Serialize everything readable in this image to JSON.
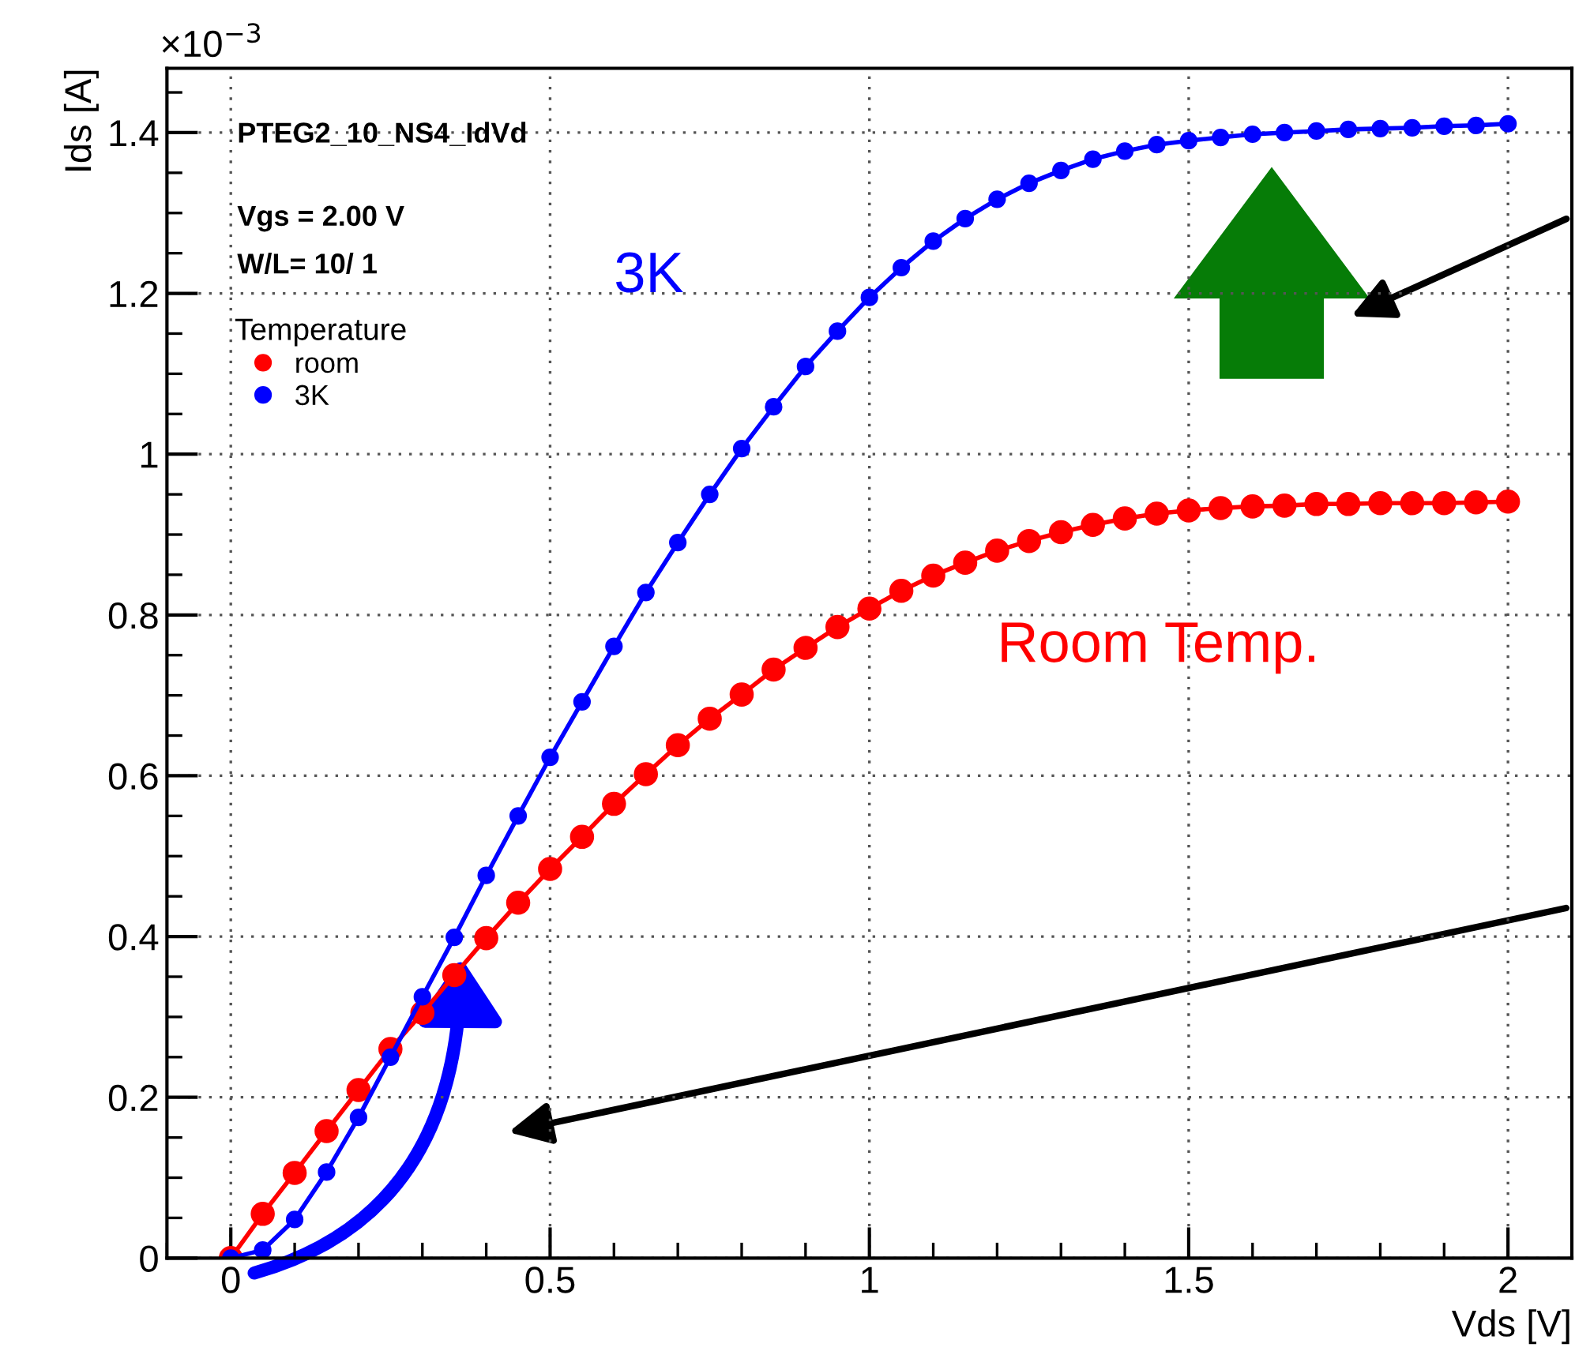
{
  "chart_data": {
    "type": "line",
    "x": [
      0,
      0.05,
      0.1,
      0.15,
      0.2,
      0.25,
      0.3,
      0.35,
      0.4,
      0.45,
      0.5,
      0.55,
      0.6,
      0.65,
      0.7,
      0.75,
      0.8,
      0.85,
      0.9,
      0.95,
      1.0,
      1.05,
      1.1,
      1.15,
      1.2,
      1.25,
      1.3,
      1.35,
      1.4,
      1.45,
      1.5,
      1.55,
      1.6,
      1.65,
      1.7,
      1.75,
      1.8,
      1.85,
      1.9,
      1.95,
      2.0
    ],
    "series": [
      {
        "name": "room",
        "color": "#ff0000",
        "values": [
          0,
          0.055,
          0.106,
          0.158,
          0.209,
          0.26,
          0.305,
          0.352,
          0.398,
          0.442,
          0.484,
          0.524,
          0.565,
          0.602,
          0.638,
          0.671,
          0.701,
          0.732,
          0.759,
          0.785,
          0.808,
          0.83,
          0.849,
          0.865,
          0.88,
          0.892,
          0.903,
          0.912,
          0.92,
          0.926,
          0.93,
          0.933,
          0.935,
          0.936,
          0.938,
          0.938,
          0.939,
          0.939,
          0.939,
          0.94,
          0.941
        ]
      },
      {
        "name": "3K",
        "color": "#0000ff",
        "values": [
          0,
          0.01,
          0.048,
          0.107,
          0.175,
          0.25,
          0.325,
          0.399,
          0.476,
          0.55,
          0.623,
          0.692,
          0.761,
          0.828,
          0.89,
          0.95,
          1.007,
          1.059,
          1.109,
          1.153,
          1.195,
          1.232,
          1.265,
          1.293,
          1.317,
          1.337,
          1.353,
          1.367,
          1.377,
          1.385,
          1.39,
          1.394,
          1.398,
          1.4,
          1.402,
          1.404,
          1.405,
          1.406,
          1.408,
          1.409,
          1.411
        ]
      }
    ],
    "xlabel": "Vds [V]",
    "ylabel": "Ids [A]",
    "legend_title": "Temperature",
    "annotations": [
      "×10$^{−3}$",
      "PTEG2_10_NS4_IdVd",
      "Vgs = 2.00 V",
      "W/L= 10/ 1",
      "3K",
      "Room Temp."
    ],
    "xlim": [
      -0.1,
      2.1
    ],
    "ylim": [
      0,
      1.48
    ],
    "xticks": [
      0,
      0.5,
      1,
      1.5,
      2
    ],
    "yticks": [
      0,
      0.2,
      0.4,
      0.6,
      0.8,
      1,
      1.2,
      1.4
    ],
    "grid": true,
    "legend": "top left",
    "marker": "circle",
    "line_style": "solid"
  }
}
